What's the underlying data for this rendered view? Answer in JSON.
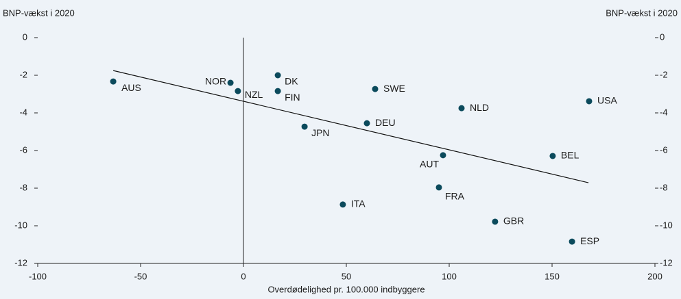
{
  "chart_data": {
    "type": "scatter",
    "ylabel": "BNP-vækst i 2020",
    "y2label": "BNP-vækst i 2020",
    "xlabel": "Overdødelighed pr. 100.000 indbyggere",
    "labels": [
      "AUS",
      "NOR",
      "NZL",
      "DK",
      "FIN",
      "SWE",
      "NLD",
      "USA",
      "JPN",
      "DEU",
      "AUT",
      "BEL",
      "FRA",
      "ITA",
      "GBR",
      "ESP"
    ],
    "x": [
      -63.3,
      -6.3,
      -2.7,
      16.7,
      16.7,
      64,
      106,
      168,
      29.7,
      60,
      97,
      150.3,
      95,
      48.3,
      122.3,
      159.7
    ],
    "values": [
      -2.33,
      -2.4,
      -2.84,
      -2.0,
      -2.84,
      -2.73,
      -3.75,
      -3.38,
      -4.73,
      -4.55,
      -6.25,
      -6.29,
      -7.96,
      -8.87,
      -9.78,
      -10.84
    ],
    "color": "#0b4a5c",
    "trend_line": {
      "x": [
        -63.3,
        167.7
      ],
      "y": [
        -1.75,
        -7.71
      ]
    },
    "xlim": [
      -100,
      200
    ],
    "xticks": [
      -100,
      -50,
      0,
      50,
      100,
      150,
      200
    ],
    "ylim": [
      -12,
      0
    ],
    "yticks": [
      0,
      -2,
      -4,
      -6,
      -8,
      -10,
      -12
    ],
    "y2lim": [
      -12,
      0
    ],
    "y2ticks": [
      0,
      -2,
      -4,
      -6,
      -8,
      -10,
      -12
    ]
  }
}
